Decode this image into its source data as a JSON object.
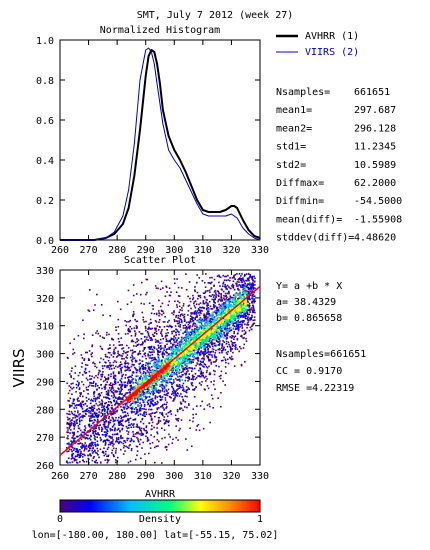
{
  "header": {
    "title": "SMT,  July 7 2012 (week 27)"
  },
  "chart_data": [
    {
      "type": "line",
      "title": "Normalized Histogram",
      "xlabel": "",
      "ylabel": "",
      "xlim": [
        260,
        330
      ],
      "ylim": [
        0,
        1.0
      ],
      "xticks": [
        "260",
        "270",
        "280",
        "290",
        "300",
        "310",
        "320",
        "330"
      ],
      "yticks": [
        "0.0",
        "0.2",
        "0.4",
        "0.6",
        "0.8",
        "1.0"
      ],
      "series": [
        {
          "name": "AVHRR (1)",
          "color": "#000000",
          "x": [
            260,
            268,
            272,
            276,
            279,
            282,
            284,
            286,
            288,
            290,
            291,
            292,
            293,
            294,
            295,
            296,
            298,
            300,
            302,
            304,
            306,
            308,
            310,
            312,
            314,
            316,
            318,
            320,
            321,
            322,
            324,
            326,
            328,
            330
          ],
          "y": [
            0,
            0,
            0,
            0.01,
            0.03,
            0.08,
            0.16,
            0.32,
            0.55,
            0.82,
            0.92,
            0.95,
            0.94,
            0.88,
            0.78,
            0.65,
            0.52,
            0.45,
            0.4,
            0.34,
            0.27,
            0.2,
            0.15,
            0.14,
            0.14,
            0.14,
            0.15,
            0.17,
            0.17,
            0.16,
            0.1,
            0.05,
            0.02,
            0.01
          ]
        },
        {
          "name": "VIIRS (2)",
          "color": "#0000cc",
          "x": [
            260,
            268,
            272,
            276,
            279,
            282,
            284,
            286,
            288,
            290,
            291,
            292,
            293,
            294,
            296,
            298,
            300,
            302,
            304,
            306,
            308,
            310,
            312,
            314,
            316,
            318,
            320,
            322,
            324,
            326,
            328,
            330
          ],
          "y": [
            0,
            0,
            0,
            0.01,
            0.04,
            0.12,
            0.25,
            0.48,
            0.8,
            0.95,
            0.96,
            0.94,
            0.88,
            0.78,
            0.58,
            0.45,
            0.4,
            0.36,
            0.3,
            0.24,
            0.18,
            0.13,
            0.12,
            0.12,
            0.12,
            0.12,
            0.13,
            0.11,
            0.06,
            0.03,
            0.01,
            0.0
          ]
        }
      ],
      "legend_position": "right"
    },
    {
      "type": "scatter",
      "title": "Scatter Plot",
      "xlabel": "AVHRR",
      "ylabel": "VIIRS",
      "xlim": [
        260,
        330
      ],
      "ylim": [
        260,
        330
      ],
      "xticks": [
        "260",
        "270",
        "280",
        "290",
        "300",
        "310",
        "320",
        "330"
      ],
      "yticks": [
        "260",
        "270",
        "280",
        "290",
        "300",
        "310",
        "320",
        "330"
      ],
      "fit_line": {
        "intercept": 38.4329,
        "slope": 0.865658,
        "color": "#ff0000"
      },
      "density_colormap": [
        "#4b0082",
        "#0000ff",
        "#00bfff",
        "#00ff7f",
        "#ffff00",
        "#ff8c00",
        "#ff0000"
      ],
      "colorbar": {
        "label": "Density",
        "min": "0",
        "max": "1"
      }
    }
  ],
  "stats": [
    {
      "label": "Nsamples=",
      "value": "661651"
    },
    {
      "label": "mean1=",
      "value": "297.687"
    },
    {
      "label": "mean2=",
      "value": "296.128"
    },
    {
      "label": "std1=",
      "value": "11.2345"
    },
    {
      "label": "std2=",
      "value": "10.5989"
    },
    {
      "label": "Diffmax=",
      "value": "62.2000"
    },
    {
      "label": "Diffmin=",
      "value": "-54.5000"
    },
    {
      "label": "mean(diff)=",
      "value": "-1.55908"
    },
    {
      "label": "stddev(diff)=",
      "value": "4.48620"
    }
  ],
  "regression": {
    "equation": "Y= a +b * X",
    "a": "a= 38.4329",
    "b": "b= 0.865658",
    "nsamples": "Nsamples=661651",
    "cc": "CC = 0.9170",
    "rmse": "RMSE =4.22319"
  },
  "footer": {
    "coords": "lon=[-180.00, 180.00] lat=[-55.15, 75.02]"
  }
}
